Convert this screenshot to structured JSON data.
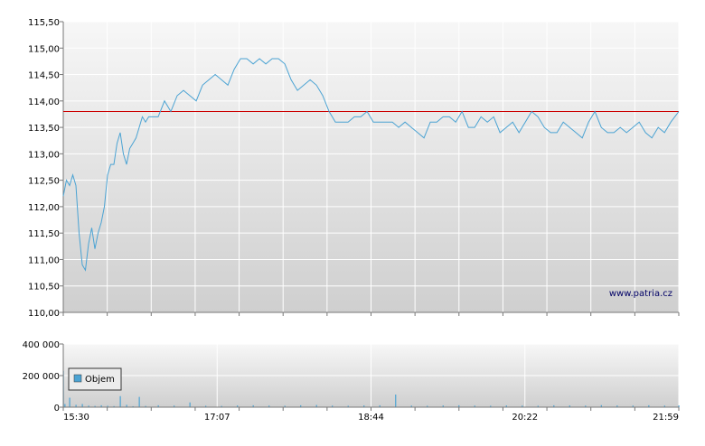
{
  "watermark": "www.patria.cz",
  "chart_data": [
    {
      "type": "line",
      "name": "price",
      "ylim": [
        110.0,
        115.5
      ],
      "y_ticks": [
        "115,50",
        "115,00",
        "114,50",
        "114,00",
        "113,50",
        "113,00",
        "112,50",
        "112,00",
        "111,50",
        "111,00",
        "110,50",
        "110,00"
      ],
      "y_tick_values": [
        115.5,
        115.0,
        114.5,
        114.0,
        113.5,
        113.0,
        112.5,
        112.0,
        111.5,
        111.0,
        110.5,
        110.0
      ],
      "grid": true,
      "reference_line": {
        "value": 113.8,
        "color": "#cc0000"
      },
      "line_color": "#4ba3d3",
      "x": [
        0,
        2,
        4,
        6,
        8,
        10,
        12,
        14,
        16,
        18,
        20,
        22,
        24,
        26,
        28,
        30,
        32,
        34,
        36,
        38,
        40,
        42,
        44,
        46,
        48,
        50,
        52,
        54,
        56,
        58,
        60,
        64,
        68,
        72,
        76,
        80,
        84,
        88,
        92,
        96,
        100,
        104,
        108,
        112,
        116,
        120,
        124,
        128,
        132,
        136,
        140,
        144,
        148,
        152,
        156,
        160,
        164,
        168,
        172,
        176,
        180,
        184,
        188,
        192,
        196,
        200,
        204,
        208,
        212,
        216,
        220,
        224,
        228,
        232,
        236,
        240,
        244,
        248,
        252,
        256,
        260,
        264,
        268,
        272,
        276,
        280,
        284,
        288,
        292,
        296,
        300,
        304,
        308,
        312,
        316,
        320,
        324,
        328,
        332,
        336,
        340,
        344,
        348,
        352,
        356,
        360,
        364,
        368,
        372,
        376,
        380,
        384,
        389
      ],
      "values": [
        112.2,
        112.5,
        112.4,
        112.6,
        112.4,
        111.5,
        110.9,
        110.8,
        111.3,
        111.6,
        111.2,
        111.5,
        111.7,
        112.0,
        112.6,
        112.8,
        112.8,
        113.2,
        113.4,
        113.0,
        112.8,
        113.1,
        113.2,
        113.3,
        113.5,
        113.7,
        113.6,
        113.7,
        113.7,
        113.7,
        113.7,
        114.0,
        113.8,
        114.1,
        114.2,
        114.1,
        114.0,
        114.3,
        114.4,
        114.5,
        114.4,
        114.3,
        114.6,
        114.8,
        114.8,
        114.7,
        114.8,
        114.7,
        114.8,
        114.8,
        114.7,
        114.4,
        114.2,
        114.3,
        114.4,
        114.3,
        114.1,
        113.8,
        113.6,
        113.6,
        113.6,
        113.7,
        113.7,
        113.8,
        113.6,
        113.6,
        113.6,
        113.6,
        113.5,
        113.6,
        113.5,
        113.4,
        113.3,
        113.6,
        113.6,
        113.7,
        113.7,
        113.6,
        113.8,
        113.5,
        113.5,
        113.7,
        113.6,
        113.7,
        113.4,
        113.5,
        113.6,
        113.4,
        113.6,
        113.8,
        113.7,
        113.5,
        113.4,
        113.4,
        113.6,
        113.5,
        113.4,
        113.3,
        113.6,
        113.8,
        113.5,
        113.4,
        113.4,
        113.5,
        113.4,
        113.5,
        113.6,
        113.4,
        113.3,
        113.5,
        113.4,
        113.6,
        113.8
      ]
    },
    {
      "type": "bar",
      "name": "volume",
      "ylim": [
        0,
        400000
      ],
      "y_ticks": [
        "400 000",
        "200 000",
        "0"
      ],
      "y_tick_values": [
        400000,
        200000,
        0
      ],
      "x_ticks": [
        "15:30",
        "17:07",
        "18:44",
        "20:22",
        "21:59"
      ],
      "legend_label": "Objem",
      "legend_position": "top-left",
      "bar_color": "#4ba3d3",
      "x": [
        0,
        1,
        4,
        8,
        12,
        16,
        20,
        24,
        28,
        32,
        36,
        40,
        44,
        48,
        52,
        60,
        70,
        80,
        90,
        100,
        110,
        120,
        130,
        140,
        150,
        160,
        170,
        180,
        190,
        200,
        210,
        220,
        230,
        240,
        250,
        260,
        270,
        280,
        290,
        300,
        310,
        320,
        330,
        340,
        350,
        360,
        370,
        380,
        389
      ],
      "values": [
        230000,
        20000,
        60000,
        15000,
        20000,
        10000,
        8000,
        12000,
        9000,
        7000,
        70000,
        15000,
        6000,
        65000,
        8000,
        12000,
        10000,
        30000,
        9000,
        8000,
        11000,
        12000,
        10000,
        9000,
        12000,
        14000,
        10000,
        9000,
        11000,
        12000,
        80000,
        10000,
        9000,
        11000,
        12000,
        10000,
        9000,
        11000,
        10000,
        9000,
        12000,
        11000,
        10000,
        13000,
        11000,
        10000,
        12000,
        10000,
        11000
      ]
    }
  ]
}
